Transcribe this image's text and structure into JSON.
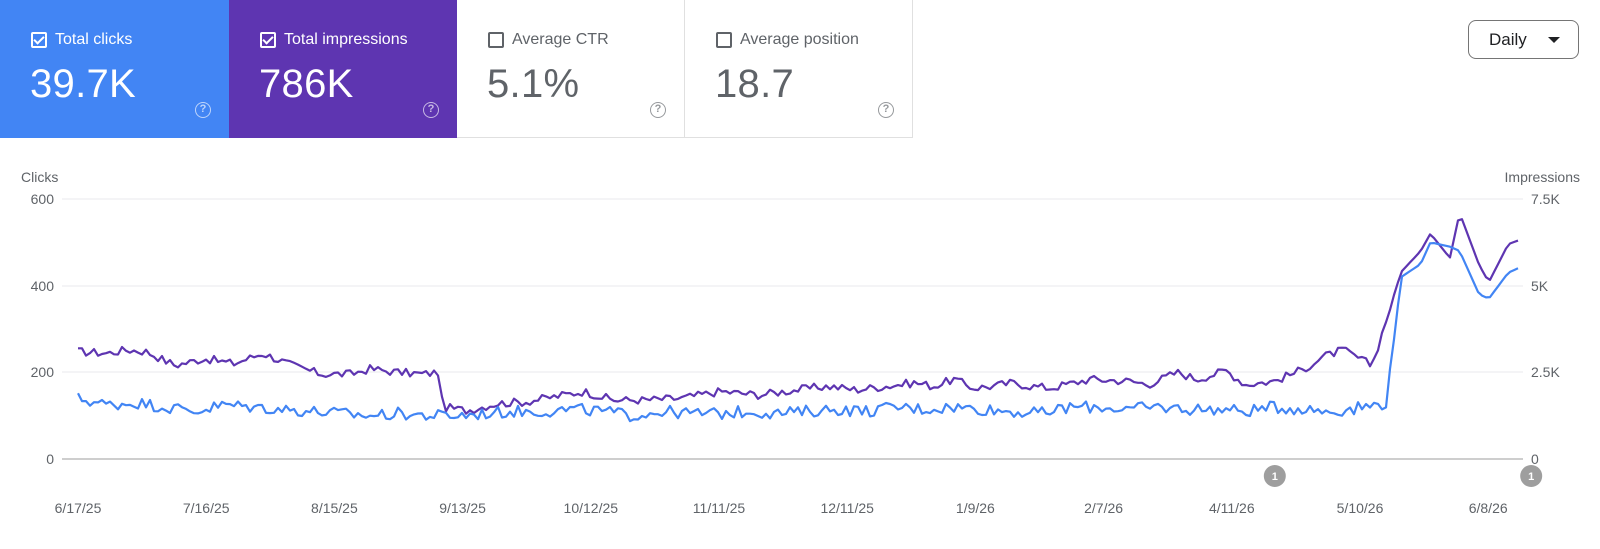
{
  "metrics": [
    {
      "key": "clicks",
      "label": "Total clicks",
      "value": "39.7K",
      "checked": true,
      "color": "#4285f4"
    },
    {
      "key": "impr",
      "label": "Total impressions",
      "value": "786K",
      "checked": true,
      "color": "#5e35b1"
    },
    {
      "key": "ctr",
      "label": "Average CTR",
      "value": "5.1%",
      "checked": false
    },
    {
      "key": "pos",
      "label": "Average position",
      "value": "18.7",
      "checked": false
    }
  ],
  "help_glyph": "?",
  "granularity": {
    "selected": "Daily"
  },
  "chart_data": {
    "type": "line",
    "left_axis": {
      "title": "Clicks",
      "ticks": [
        "600",
        "400",
        "200",
        "0"
      ],
      "ylim": [
        0,
        600
      ]
    },
    "right_axis": {
      "title": "Impressions",
      "ticks": [
        "7.5K",
        "5K",
        "2.5K",
        "0"
      ],
      "ylim": [
        0,
        7500
      ]
    },
    "x_tick_labels": [
      "6/17/25",
      "7/16/25",
      "8/15/25",
      "9/13/25",
      "10/12/25",
      "11/11/25",
      "12/11/25",
      "1/9/26",
      "2/7/26",
      "4/11/26",
      "5/10/26",
      "6/8/26"
    ],
    "grid": true,
    "series": [
      {
        "axis": "right",
        "color": "#5e35b1",
        "anchors": [
          [
            0,
            3100
          ],
          [
            0.03,
            3050
          ],
          [
            0.05,
            3150
          ],
          [
            0.07,
            3100
          ],
          [
            0.1,
            2700
          ],
          [
            0.13,
            2900
          ],
          [
            0.16,
            2750
          ],
          [
            0.19,
            3050
          ],
          [
            0.22,
            2700
          ],
          [
            0.25,
            2450
          ],
          [
            0.28,
            2450
          ],
          [
            0.3,
            2600
          ],
          [
            0.33,
            2500
          ],
          [
            0.355,
            2450
          ],
          [
            0.37,
            2500
          ],
          [
            0.375,
            1500
          ],
          [
            0.4,
            1400
          ],
          [
            0.43,
            1600
          ],
          [
            0.46,
            1650
          ],
          [
            0.49,
            1800
          ],
          [
            0.52,
            1950
          ],
          [
            0.55,
            1700
          ],
          [
            0.58,
            1700
          ],
          [
            0.62,
            1750
          ],
          [
            0.66,
            1950
          ],
          [
            0.7,
            1850
          ],
          [
            0.74,
            2000
          ],
          [
            0.77,
            2100
          ],
          [
            0.8,
            2000
          ],
          [
            0.83,
            2100
          ],
          [
            0.86,
            2200
          ],
          [
            0.88,
            2100
          ],
          [
            0.9,
            2300
          ],
          [
            0.92,
            2050
          ],
          [
            0.94,
            2100
          ],
          [
            0.96,
            2200
          ],
          [
            0.98,
            2100
          ],
          [
            1.0,
            2050
          ],
          [
            1.04,
            2300
          ],
          [
            1.08,
            2250
          ],
          [
            1.1,
            2150
          ],
          [
            1.13,
            2500
          ],
          [
            1.15,
            2300
          ],
          [
            1.18,
            2550
          ],
          [
            1.2,
            2150
          ],
          [
            1.23,
            2250
          ],
          [
            1.26,
            2600
          ],
          [
            1.28,
            2950
          ],
          [
            1.3,
            3150
          ],
          [
            1.33,
            2700
          ],
          [
            1.36,
            5400
          ],
          [
            1.38,
            6000
          ],
          [
            1.39,
            6500
          ],
          [
            1.41,
            5800
          ],
          [
            1.42,
            7100
          ],
          [
            1.44,
            5600
          ],
          [
            1.45,
            5100
          ],
          [
            1.47,
            6200
          ],
          [
            1.48,
            6300
          ]
        ]
      },
      {
        "axis": "left",
        "color": "#4285f4",
        "anchors": [
          [
            0,
            140
          ],
          [
            0.03,
            125
          ],
          [
            0.06,
            130
          ],
          [
            0.09,
            120
          ],
          [
            0.12,
            110
          ],
          [
            0.15,
            125
          ],
          [
            0.18,
            120
          ],
          [
            0.21,
            115
          ],
          [
            0.24,
            110
          ],
          [
            0.27,
            105
          ],
          [
            0.3,
            100
          ],
          [
            0.33,
            105
          ],
          [
            0.36,
            100
          ],
          [
            0.39,
            100
          ],
          [
            0.42,
            105
          ],
          [
            0.45,
            110
          ],
          [
            0.48,
            110
          ],
          [
            0.51,
            115
          ],
          [
            0.54,
            110
          ],
          [
            0.57,
            100
          ],
          [
            0.6,
            110
          ],
          [
            0.63,
            105
          ],
          [
            0.66,
            105
          ],
          [
            0.69,
            110
          ],
          [
            0.72,
            105
          ],
          [
            0.75,
            110
          ],
          [
            0.78,
            115
          ],
          [
            0.81,
            110
          ],
          [
            0.84,
            120
          ],
          [
            0.87,
            115
          ],
          [
            0.9,
            120
          ],
          [
            0.93,
            115
          ],
          [
            0.96,
            110
          ],
          [
            0.99,
            105
          ],
          [
            1.02,
            120
          ],
          [
            1.05,
            120
          ],
          [
            1.08,
            115
          ],
          [
            1.11,
            120
          ],
          [
            1.14,
            115
          ],
          [
            1.17,
            115
          ],
          [
            1.2,
            110
          ],
          [
            1.23,
            120
          ],
          [
            1.26,
            115
          ],
          [
            1.29,
            110
          ],
          [
            1.32,
            120
          ],
          [
            1.345,
            130
          ],
          [
            1.36,
            420
          ],
          [
            1.38,
            450
          ],
          [
            1.39,
            500
          ],
          [
            1.41,
            490
          ],
          [
            1.42,
            480
          ],
          [
            1.44,
            380
          ],
          [
            1.45,
            370
          ],
          [
            1.47,
            430
          ],
          [
            1.48,
            440
          ]
        ]
      }
    ],
    "annotations": [
      {
        "label": "1",
        "near_tick": "4/11/26"
      },
      {
        "label": "1",
        "near_tick": "6/8/26"
      }
    ]
  }
}
